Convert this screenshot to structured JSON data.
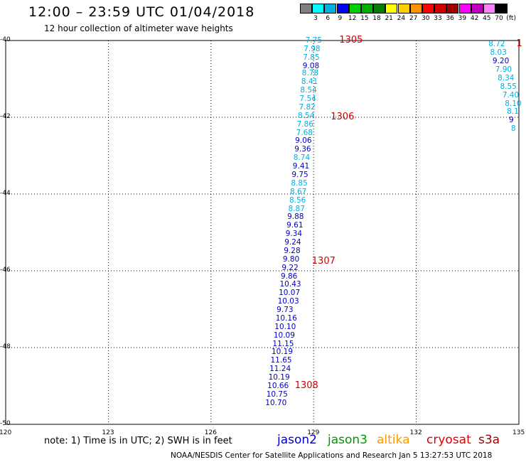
{
  "title": "12:00 – 23:59 UTC 01/04/2018",
  "subtitle": "12 hour collection of altimeter wave heights",
  "legend": {
    "unit": "(ft)",
    "bins": [
      {
        "label": "3",
        "color": "#808080"
      },
      {
        "label": "6",
        "color": "#00ffff"
      },
      {
        "label": "9",
        "color": "#00b0e0"
      },
      {
        "label": "12",
        "color": "#0000ff"
      },
      {
        "label": "15",
        "color": "#00d000"
      },
      {
        "label": "18",
        "color": "#00b000"
      },
      {
        "label": "21",
        "color": "#008000"
      },
      {
        "label": "24",
        "color": "#ffff00"
      },
      {
        "label": "27",
        "color": "#ffd000"
      },
      {
        "label": "30",
        "color": "#ff9000"
      },
      {
        "label": "33",
        "color": "#ff0000"
      },
      {
        "label": "36",
        "color": "#d00000"
      },
      {
        "label": "39",
        "color": "#a00000"
      },
      {
        "label": "42",
        "color": "#ff00ff"
      },
      {
        "label": "45",
        "color": "#c000c0"
      },
      {
        "label": "70",
        "color": "#ff80ff"
      },
      {
        "label": "",
        "color": "#000000"
      }
    ]
  },
  "axes": {
    "lon_labels": [
      "120",
      "123",
      "126",
      "129",
      "132",
      "135"
    ],
    "lat_labels": [
      "-40",
      "-42",
      "-44",
      "-46",
      "-48",
      "-50"
    ]
  },
  "track_colors": {
    "light": "#00b0e0",
    "dark": "#0000c0"
  },
  "tracks": [
    {
      "name": "main",
      "points": [
        {
          "lon": 129.05,
          "lat": -40.0,
          "v": "7.75",
          "c": "light"
        },
        {
          "lon": 129.0,
          "lat": -40.22,
          "v": "7.98",
          "c": "light"
        },
        {
          "lon": 128.98,
          "lat": -40.44,
          "v": "7.85",
          "c": "light"
        },
        {
          "lon": 128.97,
          "lat": -40.66,
          "v": "9.08",
          "c": "dark"
        },
        {
          "lon": 128.95,
          "lat": -40.86,
          "v": "8.78",
          "c": "light"
        },
        {
          "lon": 128.93,
          "lat": -41.08,
          "v": "8.41",
          "c": "light"
        },
        {
          "lon": 128.9,
          "lat": -41.3,
          "v": "8.54",
          "c": "light"
        },
        {
          "lon": 128.88,
          "lat": -41.52,
          "v": "7.54",
          "c": "light"
        },
        {
          "lon": 128.86,
          "lat": -41.74,
          "v": "7.82",
          "c": "light"
        },
        {
          "lon": 128.83,
          "lat": -41.96,
          "v": "8.54",
          "c": "light"
        },
        {
          "lon": 128.8,
          "lat": -42.18,
          "v": "7.86",
          "c": "light"
        },
        {
          "lon": 128.78,
          "lat": -42.4,
          "v": "7.68",
          "c": "light"
        },
        {
          "lon": 128.75,
          "lat": -42.62,
          "v": "9.06",
          "c": "dark"
        },
        {
          "lon": 128.73,
          "lat": -42.84,
          "v": "9.36",
          "c": "dark"
        },
        {
          "lon": 128.7,
          "lat": -43.06,
          "v": "8.74",
          "c": "light"
        },
        {
          "lon": 128.68,
          "lat": -43.28,
          "v": "9.41",
          "c": "dark"
        },
        {
          "lon": 128.65,
          "lat": -43.5,
          "v": "9.75",
          "c": "dark"
        },
        {
          "lon": 128.63,
          "lat": -43.72,
          "v": "8.85",
          "c": "light"
        },
        {
          "lon": 128.6,
          "lat": -43.94,
          "v": "8.67",
          "c": "light"
        },
        {
          "lon": 128.58,
          "lat": -44.16,
          "v": "8.56",
          "c": "light"
        },
        {
          "lon": 128.55,
          "lat": -44.38,
          "v": "8.87",
          "c": "light"
        },
        {
          "lon": 128.52,
          "lat": -44.6,
          "v": "9.88",
          "c": "dark"
        },
        {
          "lon": 128.5,
          "lat": -44.82,
          "v": "9.61",
          "c": "dark"
        },
        {
          "lon": 128.47,
          "lat": -45.04,
          "v": "9.34",
          "c": "dark"
        },
        {
          "lon": 128.44,
          "lat": -45.26,
          "v": "9.24",
          "c": "dark"
        },
        {
          "lon": 128.42,
          "lat": -45.48,
          "v": "9.28",
          "c": "dark"
        },
        {
          "lon": 128.39,
          "lat": -45.7,
          "v": "9.80",
          "c": "dark"
        },
        {
          "lon": 128.36,
          "lat": -45.92,
          "v": "9.22",
          "c": "dark"
        },
        {
          "lon": 128.33,
          "lat": -46.14,
          "v": "9.86",
          "c": "dark"
        },
        {
          "lon": 128.3,
          "lat": -46.36,
          "v": "10.43",
          "c": "dark"
        },
        {
          "lon": 128.27,
          "lat": -46.58,
          "v": "10.07",
          "c": "dark"
        },
        {
          "lon": 128.24,
          "lat": -46.8,
          "v": "10.03",
          "c": "dark"
        },
        {
          "lon": 128.21,
          "lat": -47.02,
          "v": "9.73",
          "c": "dark"
        },
        {
          "lon": 128.18,
          "lat": -47.24,
          "v": "10.16",
          "c": "dark"
        },
        {
          "lon": 128.15,
          "lat": -47.46,
          "v": "10.10",
          "c": "dark"
        },
        {
          "lon": 128.12,
          "lat": -47.68,
          "v": "10.09",
          "c": "dark"
        },
        {
          "lon": 128.09,
          "lat": -47.9,
          "v": "11.15",
          "c": "dark"
        },
        {
          "lon": 128.06,
          "lat": -48.12,
          "v": "10.19",
          "c": "dark"
        },
        {
          "lon": 128.03,
          "lat": -48.34,
          "v": "11.65",
          "c": "dark"
        },
        {
          "lon": 128.0,
          "lat": -48.56,
          "v": "11.24",
          "c": "dark"
        },
        {
          "lon": 127.97,
          "lat": -48.78,
          "v": "10.19",
          "c": "dark"
        },
        {
          "lon": 127.94,
          "lat": -49.0,
          "v": "10.66",
          "c": "dark"
        },
        {
          "lon": 127.91,
          "lat": -49.22,
          "v": "10.75",
          "c": "dark"
        },
        {
          "lon": 127.88,
          "lat": -49.44,
          "v": "10.70",
          "c": "dark"
        }
      ],
      "rev_labels": [
        {
          "lon": 129.75,
          "lat": -40.0,
          "text": "1305"
        },
        {
          "lon": 129.5,
          "lat": -42.0,
          "text": "1306"
        },
        {
          "lon": 128.95,
          "lat": -45.75,
          "text": "1307"
        },
        {
          "lon": 128.45,
          "lat": -49.0,
          "text": "1308"
        }
      ]
    },
    {
      "name": "right",
      "points": [
        {
          "lon": 134.4,
          "lat": -40.1,
          "v": "8.72",
          "c": "light"
        },
        {
          "lon": 134.45,
          "lat": -40.32,
          "v": "8.03",
          "c": "light"
        },
        {
          "lon": 134.52,
          "lat": -40.54,
          "v": "9.20",
          "c": "dark"
        },
        {
          "lon": 134.6,
          "lat": -40.76,
          "v": "7.90",
          "c": "light"
        },
        {
          "lon": 134.67,
          "lat": -40.98,
          "v": "8.34",
          "c": "light"
        },
        {
          "lon": 134.74,
          "lat": -41.2,
          "v": "8.55",
          "c": "light"
        },
        {
          "lon": 134.81,
          "lat": -41.42,
          "v": "7.40",
          "c": "light"
        },
        {
          "lon": 134.88,
          "lat": -41.64,
          "v": "8.10",
          "c": "light"
        },
        {
          "lon": 134.94,
          "lat": -41.86,
          "v": "8.1",
          "c": "light"
        },
        {
          "lon": 135.0,
          "lat": -42.08,
          "v": "9",
          "c": "dark"
        },
        {
          "lon": 135.06,
          "lat": -42.3,
          "v": "8",
          "c": "light"
        }
      ],
      "rev_labels": [
        {
          "lon": 134.93,
          "lat": -40.1,
          "text": "1"
        }
      ]
    }
  ],
  "note": "note:  1) Time is in UTC;  2) SWH is in feet",
  "satellites": [
    {
      "name": "jason2",
      "color": "#0000cc"
    },
    {
      "name": "jason3",
      "color": "#009900"
    },
    {
      "name": "altika",
      "color": "#ff9900"
    },
    {
      "name": "cryosat",
      "color": "#dd0000"
    },
    {
      "name": "s3a",
      "color": "#990000"
    }
  ],
  "credit": "NOAA/NESDIS Center for Satellite Applications and Research    Jan  5 13:27:53 UTC 2018"
}
